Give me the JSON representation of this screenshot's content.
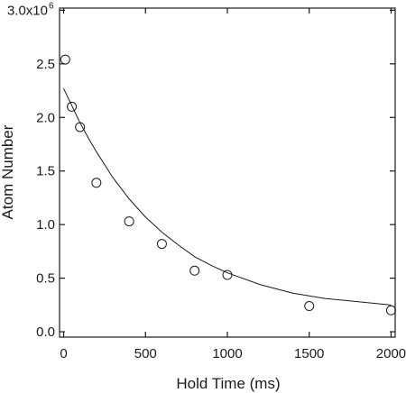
{
  "chart_data": {
    "type": "scatter",
    "title": "",
    "xlabel": "Hold Time (ms)",
    "ylabel": "Atom Number",
    "xlim": [
      -25,
      2025
    ],
    "ylim": [
      -0.05,
      3.02
    ],
    "y_scale_exponent": "6",
    "x_ticks": [
      0,
      500,
      1000,
      1500,
      2000
    ],
    "x_tick_labels": [
      "0",
      "500",
      "1000",
      "1500",
      "2000"
    ],
    "y_ticks": [
      0.0,
      0.5,
      1.0,
      1.5,
      2.0,
      2.5,
      3.0
    ],
    "y_tick_labels": [
      "0.0",
      "0.5",
      "1.0",
      "1.5",
      "2.0",
      "2.5",
      "3.0x10"
    ],
    "grid": false,
    "legend": "none",
    "series": [
      {
        "style": "open-circle",
        "x": [
          10,
          50,
          100,
          200,
          400,
          600,
          800,
          1000,
          1500,
          2000
        ],
        "y": [
          2.54,
          2.1,
          1.91,
          1.39,
          1.03,
          0.82,
          0.57,
          0.53,
          0.24,
          0.2
        ]
      }
    ],
    "fit_curve": {
      "style": "solid-line",
      "x": [
        0,
        50,
        100,
        150,
        200,
        300,
        400,
        500,
        600,
        700,
        800,
        900,
        1000,
        1200,
        1400,
        1600,
        1800,
        2000
      ],
      "y": [
        2.27,
        2.11,
        1.95,
        1.81,
        1.68,
        1.44,
        1.24,
        1.07,
        0.93,
        0.81,
        0.7,
        0.62,
        0.55,
        0.44,
        0.36,
        0.31,
        0.28,
        0.25
      ]
    }
  }
}
